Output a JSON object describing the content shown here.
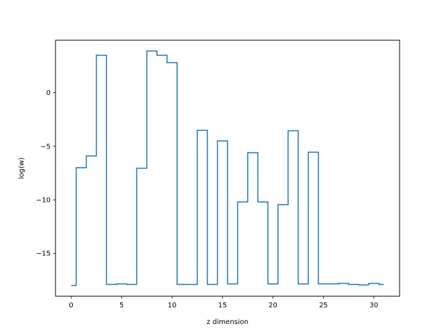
{
  "chart_data": {
    "type": "line",
    "drawstyle": "steps-mid",
    "title": "",
    "xlabel": "z dimension",
    "ylabel": "log(w)",
    "xlim": [
      -1.55,
      32.55
    ],
    "ylim": [
      -19.0,
      4.9
    ],
    "xticks": [
      0,
      5,
      10,
      15,
      20,
      25,
      30
    ],
    "yticks": [
      -15,
      -10,
      -5,
      0
    ],
    "ytick_labels": [
      "−15",
      "−10",
      "−5",
      "0"
    ],
    "grid": false,
    "legend": "none",
    "line_color": "#1f77b4",
    "series": [
      {
        "x": [
          0,
          1,
          2,
          3,
          4,
          5,
          6,
          7,
          8,
          9,
          10,
          11,
          12,
          13,
          14,
          15,
          16,
          17,
          18,
          19,
          20,
          21,
          22,
          23,
          24,
          25,
          26,
          27,
          28,
          29,
          30,
          31
        ],
        "values": [
          -18.0,
          -7.0,
          -5.9,
          3.5,
          -17.9,
          -17.85,
          -17.9,
          -7.05,
          3.9,
          3.5,
          2.8,
          -17.9,
          -17.9,
          -3.5,
          -17.9,
          -4.5,
          -17.85,
          -10.2,
          -5.6,
          -10.2,
          -17.85,
          -10.45,
          -3.55,
          -17.85,
          -5.55,
          -17.85,
          -17.85,
          -17.8,
          -17.9,
          -17.95,
          -17.8,
          -17.9
        ]
      }
    ]
  }
}
